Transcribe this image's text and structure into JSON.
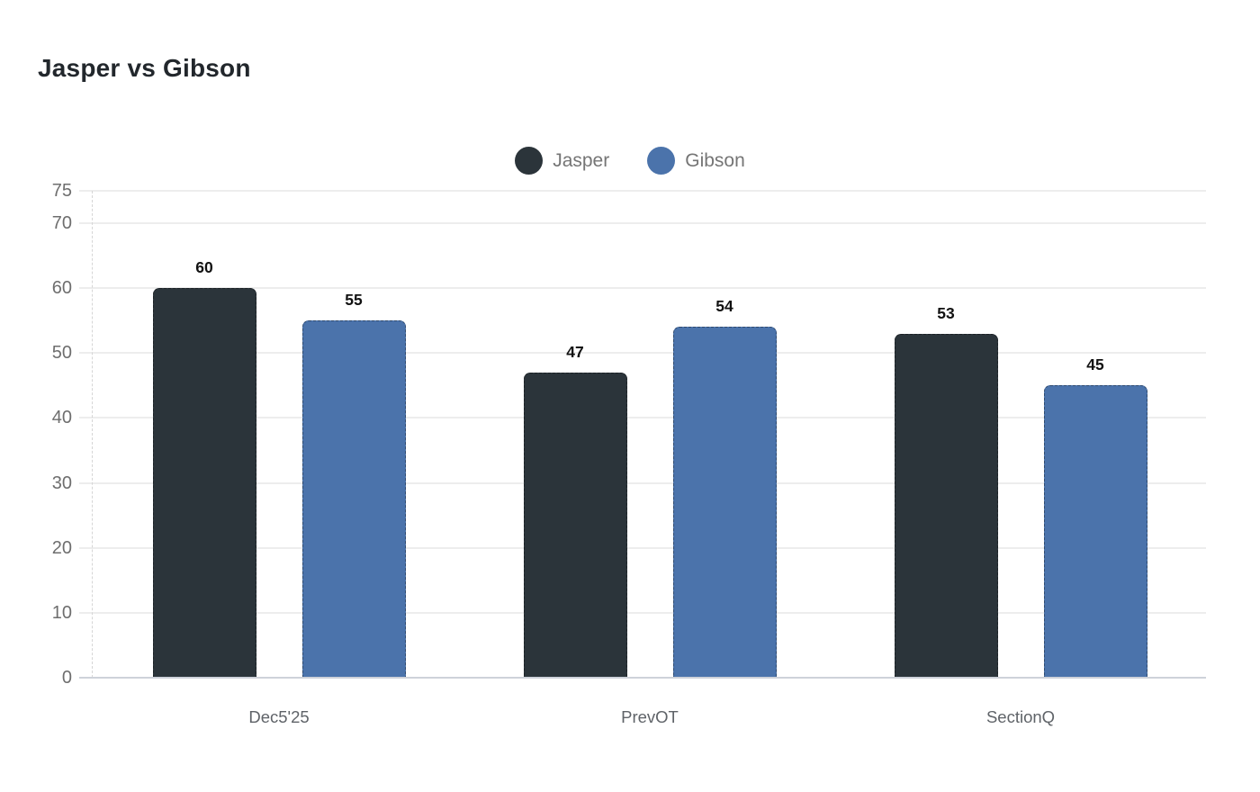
{
  "title": "Jasper vs Gibson",
  "legend": {
    "items": [
      {
        "label": "Jasper",
        "color": "#2b343a"
      },
      {
        "label": "Gibson",
        "color": "#4b73ab"
      }
    ]
  },
  "chart_data": {
    "type": "bar",
    "title": "Jasper vs Gibson",
    "categories": [
      "Dec5'25",
      "PrevOT",
      "SectionQ"
    ],
    "series": [
      {
        "name": "Jasper",
        "color": "#2b343a",
        "values": [
          60,
          47,
          53
        ]
      },
      {
        "name": "Gibson",
        "color": "#4b73ab",
        "values": [
          55,
          54,
          45
        ]
      }
    ],
    "xlabel": "",
    "ylabel": "",
    "ylim": [
      0,
      75
    ],
    "yticks": [
      0,
      10,
      20,
      30,
      40,
      50,
      60,
      70,
      75
    ],
    "grid": true,
    "legend_position": "top-center",
    "value_labels_shown": true
  },
  "colors": {
    "background": "#ffffff",
    "grid": "#ededed",
    "axis_baseline": "#ced2da",
    "y_tick_text": "#6e6e6e",
    "category_text": "#5f6368",
    "value_label_text": "#111111",
    "title_text": "#22272c",
    "legend_text": "#757575"
  }
}
